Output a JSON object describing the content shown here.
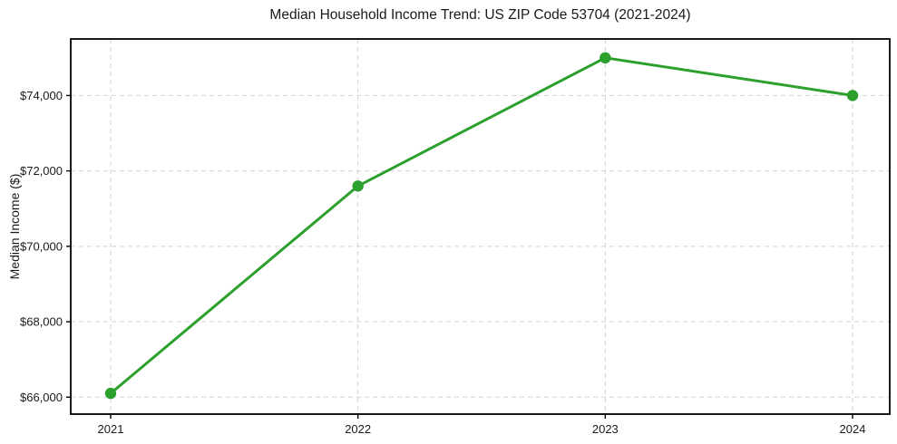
{
  "chart_data": {
    "type": "line",
    "title": "Median Household Income Trend: US ZIP Code 53704 (2021-2024)",
    "xlabel": "",
    "ylabel": "Median Income ($)",
    "categories": [
      "2021",
      "2022",
      "2023",
      "2024"
    ],
    "values": [
      66100,
      71600,
      75000,
      74000
    ],
    "ylim": [
      65550,
      75500
    ],
    "yticks": {
      "values": [
        66000,
        68000,
        70000,
        72000,
        74000
      ],
      "labels": [
        "$66,000",
        "$68,000",
        "$70,000",
        "$72,000",
        "$74,000"
      ]
    },
    "grid": true,
    "grid_style": "dashed",
    "legend_position": "none",
    "line_color": "#2ca02c",
    "marker": "circle",
    "marker_color": "#2ca02c",
    "grid_color": "#d3d3d3",
    "spine_color": "#000000",
    "text_color": "#1a1a1a",
    "background_color": "#ffffff"
  }
}
